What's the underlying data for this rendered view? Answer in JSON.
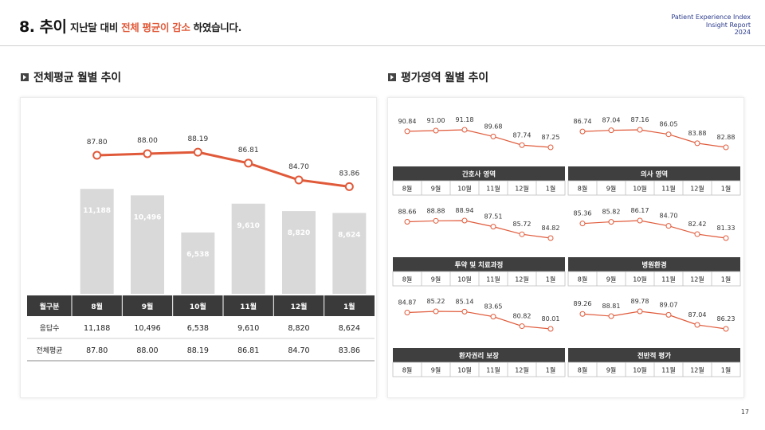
{
  "header": {
    "section_number": "8. 추이",
    "message_prefix": "지난달 대비 ",
    "message_highlight": "전체 평균이 감소",
    "message_suffix": " 하였습니다.",
    "brand_line1": "Patient Experience Index",
    "brand_line2": "Insight Report",
    "brand_line3": "2024"
  },
  "left_section": {
    "title": "전체평균 월별 추이"
  },
  "right_section": {
    "title": "평가영역 월별 추이"
  },
  "colors": {
    "accent": "#e05a3a",
    "bar": "#d9d9d9",
    "table_header": "#3a3a3a",
    "panel_header": "#3f3f3f"
  },
  "chart_data": [
    {
      "type": "bar",
      "categories": [
        "8월",
        "9월",
        "10월",
        "11월",
        "12월",
        "1월"
      ],
      "series": [
        {
          "name": "응답수",
          "values": [
            11188,
            10496,
            6538,
            9610,
            8820,
            8624
          ],
          "labels": [
            "11,188",
            "10,496",
            "6,538",
            "9,610",
            "8,820",
            "8,624"
          ]
        },
        {
          "name": "전체평균",
          "type": "line",
          "values": [
            87.8,
            88.0,
            88.19,
            86.81,
            84.7,
            83.86
          ],
          "labels": [
            "87.80",
            "88.00",
            "88.19",
            "86.81",
            "84.70",
            "83.86"
          ]
        }
      ],
      "table": {
        "header_label": "월구분",
        "rows": [
          {
            "label": "응답수",
            "cells": [
              "11,188",
              "10,496",
              "6,538",
              "9,610",
              "8,820",
              "8,624"
            ]
          },
          {
            "label": "전체평균",
            "cells": [
              "87.80",
              "88.00",
              "88.19",
              "86.81",
              "84.70",
              "83.86"
            ]
          }
        ]
      }
    },
    {
      "type": "line",
      "title": "간호사 영역",
      "categories": [
        "8월",
        "9월",
        "10월",
        "11월",
        "12월",
        "1월"
      ],
      "values": [
        90.84,
        91.0,
        91.18,
        89.68,
        87.74,
        87.25
      ],
      "labels": [
        "90.84",
        "91.00",
        "91.18",
        "89.68",
        "87.74",
        "87.25"
      ]
    },
    {
      "type": "line",
      "title": "의사 영역",
      "categories": [
        "8월",
        "9월",
        "10월",
        "11월",
        "12월",
        "1월"
      ],
      "values": [
        86.74,
        87.04,
        87.16,
        86.05,
        83.88,
        82.88
      ],
      "labels": [
        "86.74",
        "87.04",
        "87.16",
        "86.05",
        "83.88",
        "82.88"
      ]
    },
    {
      "type": "line",
      "title": "투약 및 치료과정",
      "categories": [
        "8월",
        "9월",
        "10월",
        "11월",
        "12월",
        "1월"
      ],
      "values": [
        88.66,
        88.88,
        88.94,
        87.51,
        85.72,
        84.82
      ],
      "labels": [
        "88.66",
        "88.88",
        "88.94",
        "87.51",
        "85.72",
        "84.82"
      ]
    },
    {
      "type": "line",
      "title": "병원환경",
      "categories": [
        "8월",
        "9월",
        "10월",
        "11월",
        "12월",
        "1월"
      ],
      "values": [
        85.36,
        85.82,
        86.17,
        84.7,
        82.42,
        81.33
      ],
      "labels": [
        "85.36",
        "85.82",
        "86.17",
        "84.70",
        "82.42",
        "81.33"
      ]
    },
    {
      "type": "line",
      "title": "환자권리 보장",
      "categories": [
        "8월",
        "9월",
        "10월",
        "11월",
        "12월",
        "1월"
      ],
      "values": [
        84.87,
        85.22,
        85.14,
        83.65,
        80.82,
        80.01
      ],
      "labels": [
        "84.87",
        "85.22",
        "85.14",
        "83.65",
        "80.82",
        "80.01"
      ]
    },
    {
      "type": "line",
      "title": "전반적 평가",
      "categories": [
        "8월",
        "9월",
        "10월",
        "11월",
        "12월",
        "1월"
      ],
      "values": [
        89.26,
        88.81,
        89.78,
        89.07,
        87.04,
        86.23
      ],
      "labels": [
        "89.26",
        "88.81",
        "89.78",
        "89.07",
        "87.04",
        "86.23"
      ]
    }
  ],
  "footer": {
    "page_number": "17"
  }
}
